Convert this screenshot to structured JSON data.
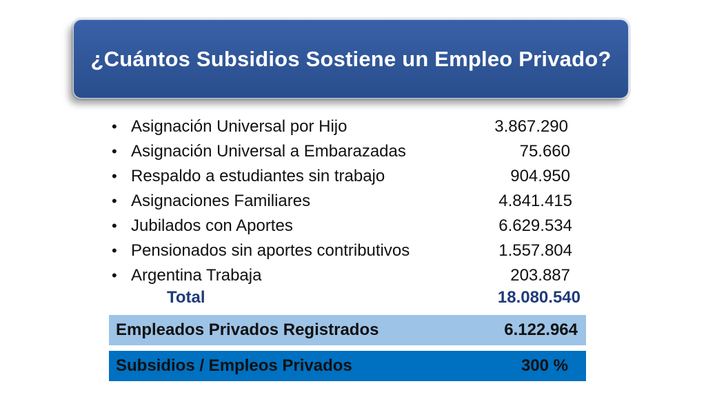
{
  "title": "¿Cuántos Subsidios Sostiene un Empleo Privado?",
  "items": [
    {
      "label": "Asignación Universal por Hijo",
      "value": "3.867.290"
    },
    {
      "label": "Asignación Universal a Embarazadas",
      "value": "75.660"
    },
    {
      "label": "Respaldo a estudiantes sin trabajo",
      "value": "904.950"
    },
    {
      "label": "Asignaciones Familiares",
      "value": "4.841.415"
    },
    {
      "label": "Jubilados con Aportes",
      "value": "6.629.534"
    },
    {
      "label": "Pensionados sin aportes contributivos",
      "value": "1.557.804"
    },
    {
      "label": "Argentina Trabaja",
      "value": "203.887"
    }
  ],
  "bullet": "•",
  "total": {
    "label": "Total",
    "value": "18.080.540"
  },
  "employed": {
    "label": "Empleados Privados Registrados",
    "value": "6.122.964"
  },
  "ratio": {
    "label": "Subsidios / Empleos Privados",
    "value": "300 %"
  },
  "colors": {
    "title_bg": "#2f5597",
    "band_light": "#9dc3e6",
    "band_dark": "#0070c0",
    "total_text": "#1f3b7a"
  }
}
